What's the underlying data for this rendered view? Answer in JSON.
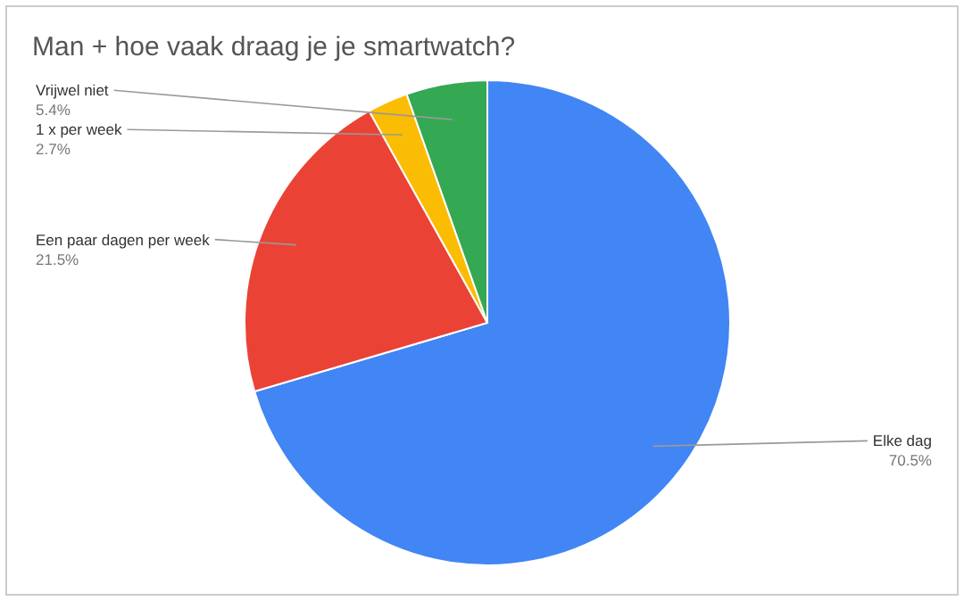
{
  "chart_data": {
    "type": "pie",
    "title": "Man + hoe vaak draag je je smartwatch?",
    "categories": [
      "Elke dag",
      "Een paar dagen per week",
      "1 x per week",
      "Vrijwel niet"
    ],
    "values": [
      70.5,
      21.5,
      2.7,
      5.4
    ],
    "colors": [
      "#4285f4",
      "#ea4335",
      "#fbbc04",
      "#34a853"
    ],
    "value_labels": [
      "70.5%",
      "21.5%",
      "2.7%",
      "5.4%"
    ],
    "legend": false
  }
}
